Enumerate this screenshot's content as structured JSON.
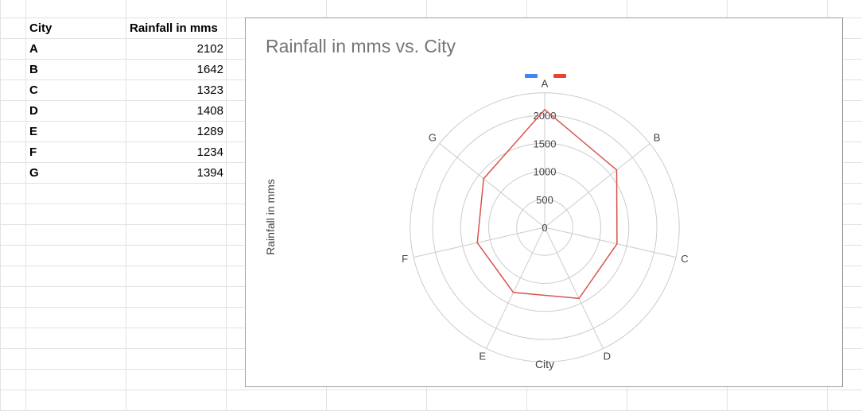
{
  "sheet": {
    "headers": [
      "City",
      "Rainfall in mms"
    ],
    "rows": [
      {
        "city": "A",
        "rainfall": "2102"
      },
      {
        "city": "B",
        "rainfall": "1642"
      },
      {
        "city": "C",
        "rainfall": "1323"
      },
      {
        "city": "D",
        "rainfall": "1408"
      },
      {
        "city": "E",
        "rainfall": "1289"
      },
      {
        "city": "F",
        "rainfall": "1234"
      },
      {
        "city": "G",
        "rainfall": "1394"
      }
    ]
  },
  "chart_data": {
    "type": "radar",
    "title": "Rainfall in mms vs. City",
    "xlabel": "City",
    "ylabel": "Rainfall in mms",
    "categories": [
      "A",
      "B",
      "C",
      "D",
      "E",
      "F",
      "G"
    ],
    "series": [
      {
        "values": [
          2102,
          1642,
          1323,
          1408,
          1289,
          1234,
          1394
        ],
        "color": "#d9534f"
      }
    ],
    "legend_swatches": [
      "#4285f4",
      "#ea4335"
    ],
    "radial_ticks": [
      0,
      500,
      1000,
      1500,
      2000
    ],
    "rmax": 2000,
    "grid": true,
    "legend_position": "top"
  }
}
